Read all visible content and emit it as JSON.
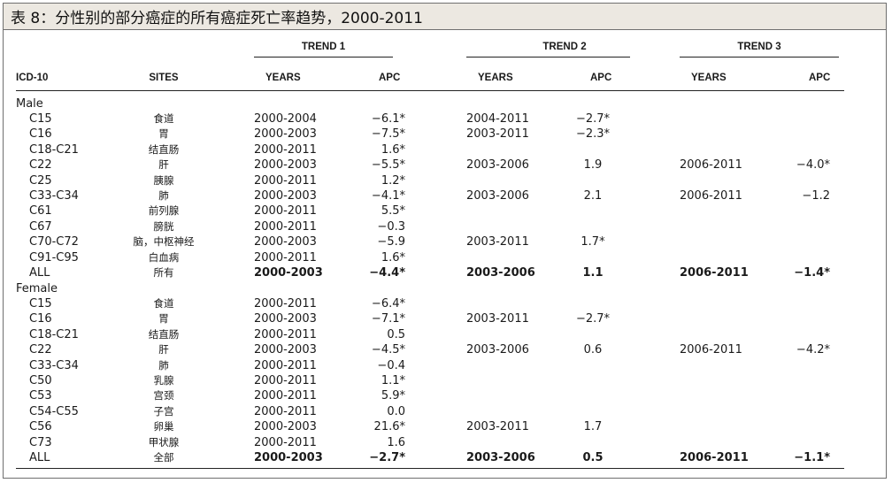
{
  "title": "表 8：分性别的部分癌症的所有癌症死亡率趋势，2000-2011",
  "headers": {
    "icd": "ICD-10",
    "sites": "SITES",
    "trend1": "TREND 1",
    "trend2": "TREND 2",
    "trend3": "TREND 3",
    "years": "YEARS",
    "apc": "APC"
  },
  "groups": {
    "male": "Male",
    "female": "Female"
  },
  "male": [
    {
      "icd": "C15",
      "site": "食道",
      "y1": "2000-2004",
      "a1": "−6.1*",
      "y2": "2004-2011",
      "a2": "−2.7*",
      "y3": "",
      "a3": ""
    },
    {
      "icd": "C16",
      "site": "胃",
      "y1": "2000-2003",
      "a1": "−7.5*",
      "y2": "2003-2011",
      "a2": "−2.3*",
      "y3": "",
      "a3": ""
    },
    {
      "icd": "C18-C21",
      "site": "结直肠",
      "y1": "2000-2011",
      "a1": "1.6*",
      "y2": "",
      "a2": "",
      "y3": "",
      "a3": ""
    },
    {
      "icd": "C22",
      "site": "肝",
      "y1": "2000-2003",
      "a1": "−5.5*",
      "y2": "2003-2006",
      "a2": "1.9",
      "y3": "2006-2011",
      "a3": "−4.0*"
    },
    {
      "icd": "C25",
      "site": "胰腺",
      "y1": "2000-2011",
      "a1": "1.2*",
      "y2": "",
      "a2": "",
      "y3": "",
      "a3": ""
    },
    {
      "icd": "C33-C34",
      "site": "肺",
      "y1": "2000-2003",
      "a1": "−4.1*",
      "y2": "2003-2006",
      "a2": "2.1",
      "y3": "2006-2011",
      "a3": "−1.2"
    },
    {
      "icd": "C61",
      "site": "前列腺",
      "y1": "2000-2011",
      "a1": "5.5*",
      "y2": "",
      "a2": "",
      "y3": "",
      "a3": ""
    },
    {
      "icd": "C67",
      "site": "膀胱",
      "y1": "2000-2011",
      "a1": "−0.3",
      "y2": "",
      "a2": "",
      "y3": "",
      "a3": ""
    },
    {
      "icd": "C70-C72",
      "site": "脑，中枢神经",
      "y1": "2000-2003",
      "a1": "−5.9",
      "y2": "2003-2011",
      "a2": "1.7*",
      "y3": "",
      "a3": ""
    },
    {
      "icd": "C91-C95",
      "site": "白血病",
      "y1": "2000-2011",
      "a1": "1.6*",
      "y2": "",
      "a2": "",
      "y3": "",
      "a3": ""
    },
    {
      "icd": "ALL",
      "site": "所有",
      "y1": "2000-2003",
      "a1": "−4.4*",
      "y2": "2003-2006",
      "a2": "1.1",
      "y3": "2006-2011",
      "a3": "−1.4*",
      "bold": true
    }
  ],
  "female": [
    {
      "icd": "C15",
      "site": "食道",
      "y1": "2000-2011",
      "a1": "−6.4*",
      "y2": "",
      "a2": "",
      "y3": "",
      "a3": ""
    },
    {
      "icd": "C16",
      "site": "胃",
      "y1": "2000-2003",
      "a1": "−7.1*",
      "y2": "2003-2011",
      "a2": "−2.7*",
      "y3": "",
      "a3": ""
    },
    {
      "icd": "C18-C21",
      "site": "结直肠",
      "y1": "2000-2011",
      "a1": "0.5",
      "y2": "",
      "a2": "",
      "y3": "",
      "a3": ""
    },
    {
      "icd": "C22",
      "site": "肝",
      "y1": "2000-2003",
      "a1": "−4.5*",
      "y2": "2003-2006",
      "a2": "0.6",
      "y3": "2006-2011",
      "a3": "−4.2*"
    },
    {
      "icd": "C33-C34",
      "site": "肺",
      "y1": "2000-2011",
      "a1": "−0.4",
      "y2": "",
      "a2": "",
      "y3": "",
      "a3": ""
    },
    {
      "icd": "C50",
      "site": "乳腺",
      "y1": "2000-2011",
      "a1": "1.1*",
      "y2": "",
      "a2": "",
      "y3": "",
      "a3": ""
    },
    {
      "icd": "C53",
      "site": "宫颈",
      "y1": "2000-2011",
      "a1": "5.9*",
      "y2": "",
      "a2": "",
      "y3": "",
      "a3": ""
    },
    {
      "icd": "C54-C55",
      "site": "子宫",
      "y1": "2000-2011",
      "a1": "0.0",
      "y2": "",
      "a2": "",
      "y3": "",
      "a3": ""
    },
    {
      "icd": "C56",
      "site": "卵巢",
      "y1": "2000-2003",
      "a1": "21.6*",
      "y2": "2003-2011",
      "a2": "1.7",
      "y3": "",
      "a3": ""
    },
    {
      "icd": "C73",
      "site": "甲状腺",
      "y1": "2000-2011",
      "a1": "1.6",
      "y2": "",
      "a2": "",
      "y3": "",
      "a3": ""
    },
    {
      "icd": "ALL",
      "site": "全部",
      "y1": "2000-2003",
      "a1": "−2.7*",
      "y2": "2003-2006",
      "a2": "0.5",
      "y3": "2006-2011",
      "a3": "−1.1*",
      "bold": true
    }
  ]
}
